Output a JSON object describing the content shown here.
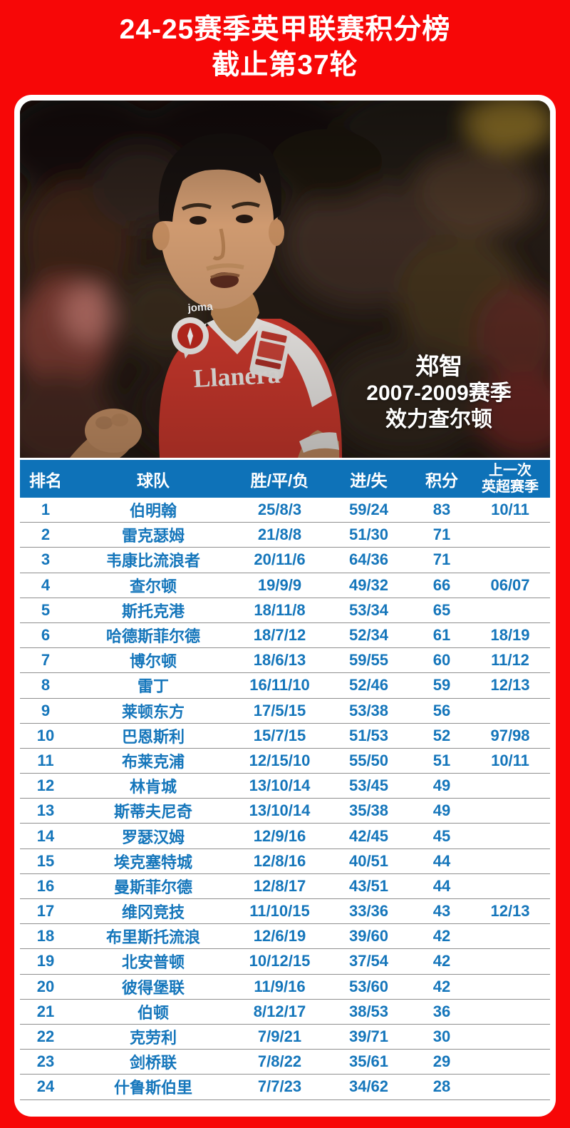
{
  "colors": {
    "background_red": "#F70707",
    "table_header_blue": "#0E72B8",
    "table_text_blue": "#1576BB"
  },
  "header": {
    "title_line1": "24-25赛季英甲联赛积分榜",
    "title_line2": "截止第37轮"
  },
  "photo": {
    "caption_name": "郑智",
    "caption_period": "2007-2009赛季",
    "caption_club": "效力查尔顿",
    "jersey_sponsor": "Llanera",
    "jersey_brand": "joma"
  },
  "table": {
    "columns": [
      "排名",
      "球队",
      "胜/平/负",
      "进/失",
      "积分"
    ],
    "last_column": {
      "line1": "上一次",
      "line2": "英超赛季"
    },
    "rows": [
      {
        "rank": "1",
        "team": "伯明翰",
        "wdl": "25/8/3",
        "goals": "59/24",
        "points": "83",
        "last_pl": "10/11"
      },
      {
        "rank": "2",
        "team": "雷克瑟姆",
        "wdl": "21/8/8",
        "goals": "51/30",
        "points": "71",
        "last_pl": ""
      },
      {
        "rank": "3",
        "team": "韦康比流浪者",
        "wdl": "20/11/6",
        "goals": "64/36",
        "points": "71",
        "last_pl": ""
      },
      {
        "rank": "4",
        "team": "查尔顿",
        "wdl": "19/9/9",
        "goals": "49/32",
        "points": "66",
        "last_pl": "06/07"
      },
      {
        "rank": "5",
        "team": "斯托克港",
        "wdl": "18/11/8",
        "goals": "53/34",
        "points": "65",
        "last_pl": ""
      },
      {
        "rank": "6",
        "team": "哈德斯菲尔德",
        "wdl": "18/7/12",
        "goals": "52/34",
        "points": "61",
        "last_pl": "18/19"
      },
      {
        "rank": "7",
        "team": "博尔顿",
        "wdl": "18/6/13",
        "goals": "59/55",
        "points": "60",
        "last_pl": "11/12"
      },
      {
        "rank": "8",
        "team": "雷丁",
        "wdl": "16/11/10",
        "goals": "52/46",
        "points": "59",
        "last_pl": "12/13"
      },
      {
        "rank": "9",
        "team": "莱顿东方",
        "wdl": "17/5/15",
        "goals": "53/38",
        "points": "56",
        "last_pl": ""
      },
      {
        "rank": "10",
        "team": "巴恩斯利",
        "wdl": "15/7/15",
        "goals": "51/53",
        "points": "52",
        "last_pl": "97/98"
      },
      {
        "rank": "11",
        "team": "布莱克浦",
        "wdl": "12/15/10",
        "goals": "55/50",
        "points": "51",
        "last_pl": "10/11"
      },
      {
        "rank": "12",
        "team": "林肯城",
        "wdl": "13/10/14",
        "goals": "53/45",
        "points": "49",
        "last_pl": ""
      },
      {
        "rank": "13",
        "team": "斯蒂夫尼奇",
        "wdl": "13/10/14",
        "goals": "35/38",
        "points": "49",
        "last_pl": ""
      },
      {
        "rank": "14",
        "team": "罗瑟汉姆",
        "wdl": "12/9/16",
        "goals": "42/45",
        "points": "45",
        "last_pl": ""
      },
      {
        "rank": "15",
        "team": "埃克塞特城",
        "wdl": "12/8/16",
        "goals": "40/51",
        "points": "44",
        "last_pl": ""
      },
      {
        "rank": "16",
        "team": "曼斯菲尔德",
        "wdl": "12/8/17",
        "goals": "43/51",
        "points": "44",
        "last_pl": ""
      },
      {
        "rank": "17",
        "team": "维冈竞技",
        "wdl": "11/10/15",
        "goals": "33/36",
        "points": "43",
        "last_pl": "12/13"
      },
      {
        "rank": "18",
        "team": "布里斯托流浪",
        "wdl": "12/6/19",
        "goals": "39/60",
        "points": "42",
        "last_pl": ""
      },
      {
        "rank": "19",
        "team": "北安普顿",
        "wdl": "10/12/15",
        "goals": "37/54",
        "points": "42",
        "last_pl": ""
      },
      {
        "rank": "20",
        "team": "彼得堡联",
        "wdl": "11/9/16",
        "goals": "53/60",
        "points": "42",
        "last_pl": ""
      },
      {
        "rank": "21",
        "team": "伯顿",
        "wdl": "8/12/17",
        "goals": "38/53",
        "points": "36",
        "last_pl": ""
      },
      {
        "rank": "22",
        "team": "克劳利",
        "wdl": "7/9/21",
        "goals": "39/71",
        "points": "30",
        "last_pl": ""
      },
      {
        "rank": "23",
        "team": "剑桥联",
        "wdl": "7/8/22",
        "goals": "35/61",
        "points": "29",
        "last_pl": ""
      },
      {
        "rank": "24",
        "team": "什鲁斯伯里",
        "wdl": "7/7/23",
        "goals": "34/62",
        "points": "28",
        "last_pl": ""
      }
    ]
  }
}
